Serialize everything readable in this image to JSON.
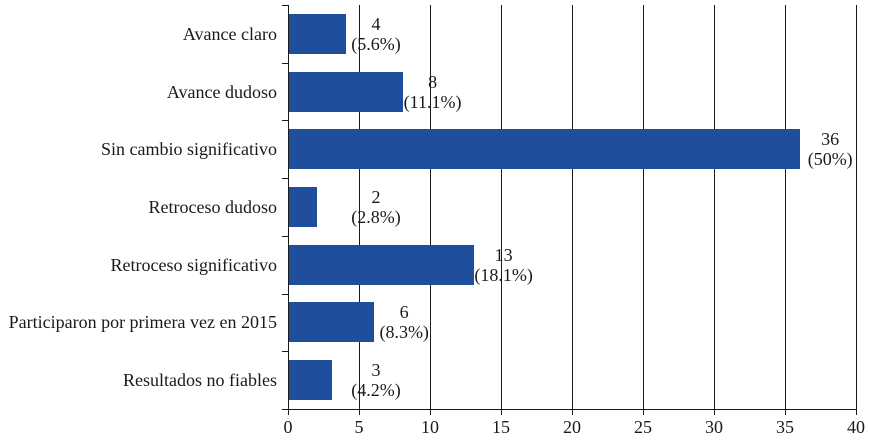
{
  "chart_data": {
    "type": "bar",
    "orientation": "horizontal",
    "title": "",
    "xlabel": "",
    "ylabel": "",
    "categories": [
      "Avance claro",
      "Avance dudoso",
      "Sin cambio significativo",
      "Retroceso dudoso",
      "Retroceso significativo",
      "Participaron por primera vez en 2015",
      "Resultados no fiables"
    ],
    "values": [
      4,
      8,
      36,
      2,
      13,
      6,
      3
    ],
    "pct_labels": [
      "(5.6%)",
      "(11.1%)",
      "(50%)",
      "(2.8%)",
      "(18.1%)",
      "(8.3%)",
      "(4.2%)"
    ],
    "xlim": [
      0,
      40
    ],
    "xticks": [
      0,
      5,
      10,
      15,
      20,
      25,
      30,
      35,
      40
    ],
    "grid": true,
    "legend": false,
    "bar_color": "#1E4E9C",
    "axis_color": "#1a1a1a",
    "text_color": "#1a1a1a"
  }
}
